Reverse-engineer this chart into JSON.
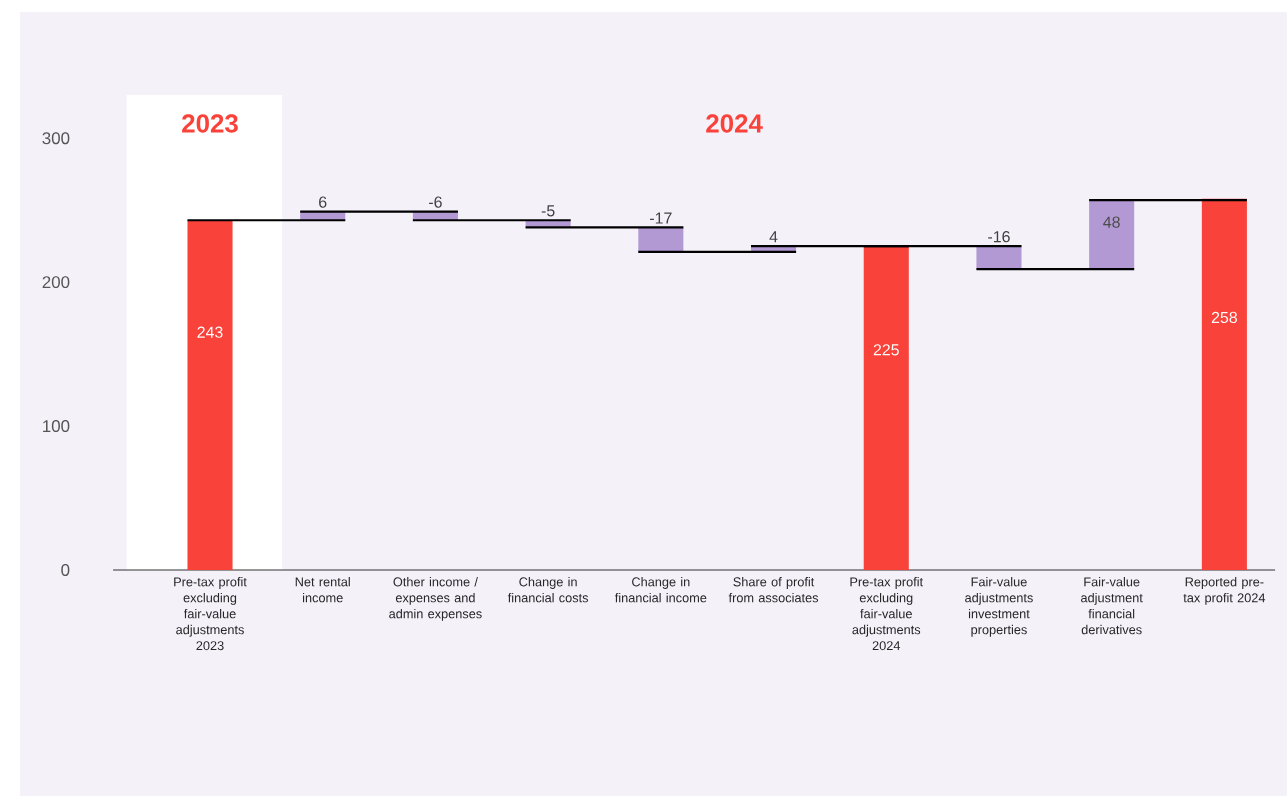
{
  "chart_data": {
    "type": "bar",
    "categories": [
      "Pre-tax profit excluding fair-value adjustments 2023",
      "Net rental income",
      "Other income / expenses and admin expenses",
      "Change in financial costs",
      "Change in financial income",
      "Share of profit from associates",
      "Pre-tax profit excluding fair-value adjustments 2024",
      "Fair-value adjustments investment properties",
      "Fair-value adjustment financial derivatives",
      "Reported pre-tax profit 2024"
    ],
    "values": [
      243,
      6,
      -6,
      -5,
      -17,
      4,
      225,
      -16,
      48,
      258
    ],
    "base": [
      0,
      243,
      249,
      243,
      238,
      221,
      0,
      225,
      209,
      0
    ],
    "colors": [
      "#f94239",
      "#b399d4",
      "#b399d4",
      "#b399d4",
      "#b399d4",
      "#b399d4",
      "#f94239",
      "#b399d4",
      "#b399d4",
      "#f94239"
    ],
    "data_labels": true,
    "ylim": [
      0,
      330
    ],
    "yticks": [
      0,
      100,
      200,
      300
    ],
    "annotations": [
      "2023",
      "2024"
    ],
    "grid": false
  }
}
